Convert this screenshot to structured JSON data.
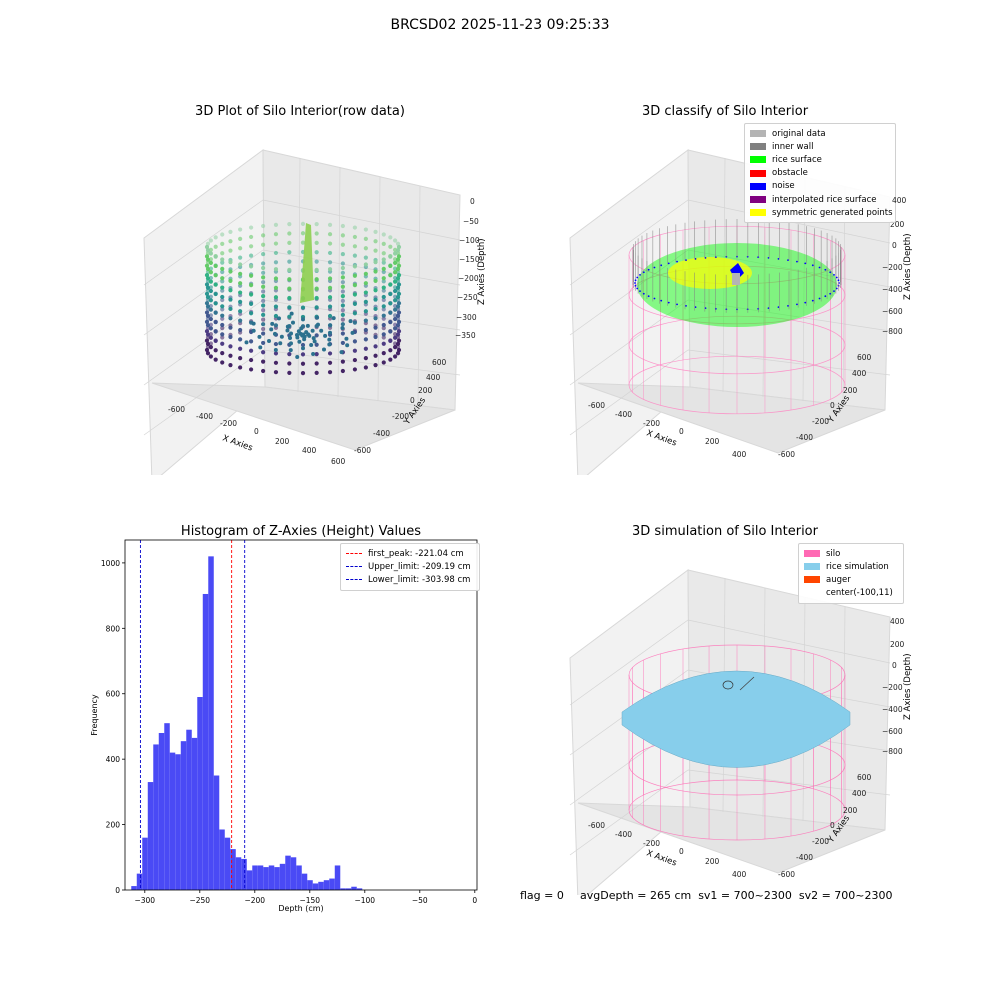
{
  "suptitle": "BRCSD02 2025-11-23 09:25:33",
  "panels": {
    "raw": {
      "title": "3D Plot of Silo Interior(row data)",
      "xlabel": "X Axies",
      "ylabel": "Y Axies",
      "zlabel": "Z Axies (Depth)",
      "xticks": [
        "-600",
        "-400",
        "-200",
        "0",
        "200",
        "400",
        "600"
      ],
      "yticks": [
        "-600",
        "-400",
        "-200",
        "0",
        "200",
        "400",
        "600"
      ],
      "zticks": [
        "0",
        "−50",
        "−100",
        "−150",
        "−200",
        "−250",
        "−300",
        "−350"
      ]
    },
    "classify": {
      "title": "3D classify of Silo Interior",
      "xlabel": "X Axies",
      "ylabel": "Y Axies",
      "zlabel": "Z Axies (Depth)",
      "xticks": [
        "-600",
        "-400",
        "-200",
        "0",
        "200",
        "400"
      ],
      "yticks": [
        "-600",
        "-400",
        "-200",
        "0",
        "200",
        "400",
        "600"
      ],
      "zticks": [
        "400",
        "200",
        "0",
        "−200",
        "−400",
        "−600",
        "−800"
      ],
      "legend": [
        {
          "label": "original data",
          "color": "#b4b4b4"
        },
        {
          "label": "inner wall",
          "color": "#808080"
        },
        {
          "label": "rice surface",
          "color": "#00ff00"
        },
        {
          "label": "obstacle",
          "color": "#ff0000"
        },
        {
          "label": "noise",
          "color": "#0000ff"
        },
        {
          "label": "interpolated rice surface",
          "color": "#800080"
        },
        {
          "label": "symmetric generated points",
          "color": "#ffff00"
        }
      ]
    },
    "simulation": {
      "title": "3D simulation of Silo Interior",
      "xlabel": "X Axies",
      "ylabel": "Y Axies",
      "zlabel": "Z Axies (Depth)",
      "xticks": [
        "-600",
        "-400",
        "-200",
        "0",
        "200",
        "400"
      ],
      "yticks": [
        "-600",
        "-400",
        "-200",
        "0",
        "200",
        "400",
        "600"
      ],
      "zticks": [
        "400",
        "200",
        "0",
        "−200",
        "−400",
        "−600",
        "−800"
      ],
      "legend": [
        {
          "label": "silo",
          "color": "#ff69b4"
        },
        {
          "label": "rice simulation",
          "color": "#87ceeb"
        },
        {
          "label": "auger",
          "color": "#ff4500"
        },
        {
          "label": "center(-100,11)",
          "color": ""
        }
      ]
    }
  },
  "footer": {
    "flag": "flag = 0",
    "stats": "avgDepth = 265 cm  sv1 = 700~2300  sv2 = 700~2300"
  },
  "chart_data": [
    {
      "type": "bar",
      "title": "Histogram of Z-Axies (Height) Values",
      "xlabel": "Depth (cm)",
      "ylabel": "Frequency",
      "xlim": [
        -318,
        2
      ],
      "ylim": [
        0,
        1070
      ],
      "xticks": [
        -300,
        -250,
        -200,
        -150,
        -100,
        -50,
        0
      ],
      "yticks": [
        0,
        200,
        400,
        600,
        800,
        1000
      ],
      "bar_color": "#4a4af5",
      "bins": {
        "start": -312.3,
        "width": 5.0,
        "values": [
          12,
          50,
          160,
          330,
          445,
          480,
          510,
          420,
          415,
          455,
          490,
          465,
          590,
          905,
          1020,
          350,
          185,
          160,
          125,
          100,
          95,
          60,
          75,
          75,
          70,
          75,
          70,
          80,
          105,
          100,
          75,
          50,
          30,
          20,
          25,
          30,
          35,
          75,
          5,
          5,
          10,
          5
        ]
      },
      "reference_lines": [
        {
          "label": "first_peak: -221.04 cm",
          "x": -221.04,
          "color": "#ff0000"
        },
        {
          "label": "Upper_limit: -209.19 cm",
          "x": -209.19,
          "color": "#0000cc"
        },
        {
          "label": "Lower_limit: -303.98 cm",
          "x": -303.98,
          "color": "#0000cc"
        }
      ],
      "legend_position": "top-right"
    }
  ]
}
